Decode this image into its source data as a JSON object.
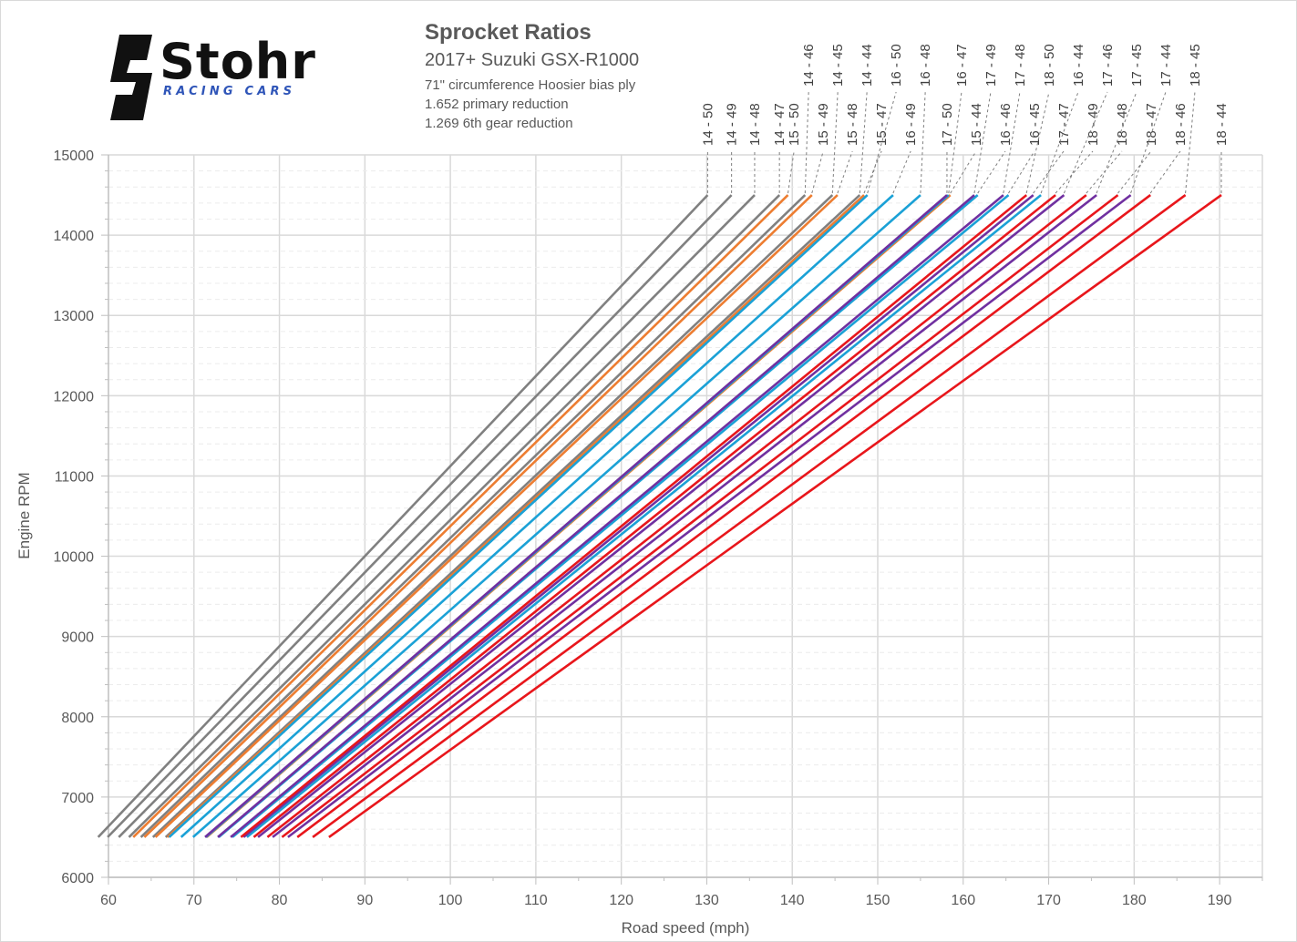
{
  "logo": {
    "brand": "Stohr",
    "tagline": "RACING CARS"
  },
  "header": {
    "title": "Sprocket Ratios",
    "subtitle": "2017+ Suzuki GSX-R1000",
    "notes": [
      "71\" circumference Hoosier bias ply",
      "1.652 primary reduction",
      "1.269 6th gear reduction"
    ]
  },
  "colors": {
    "14": "#808080",
    "15": "#ed7d31",
    "16": "#1ba1d6",
    "17": "#7030a0",
    "18": "#e8161b",
    "grid": "#d9d9d9",
    "axis": "#bfbfbf"
  },
  "chart_data": {
    "type": "line",
    "title": "Sprocket Ratios",
    "xlabel": "Road speed (mph)",
    "ylabel": "Engine RPM",
    "xlim": [
      60,
      195
    ],
    "ylim": [
      6000,
      15000
    ],
    "x_ticks": [
      60,
      70,
      80,
      90,
      100,
      110,
      120,
      130,
      140,
      150,
      160,
      170,
      180,
      190
    ],
    "y_ticks": [
      6000,
      7000,
      8000,
      9000,
      10000,
      11000,
      12000,
      13000,
      14000,
      15000
    ],
    "grid": true,
    "series": [
      {
        "name": "14 - 50",
        "x": [
          58.8,
          130.1
        ],
        "y": [
          6500,
          14500
        ]
      },
      {
        "name": "14 - 49",
        "x": [
          59.9,
          132.9
        ],
        "y": [
          6500,
          14500
        ]
      },
      {
        "name": "14 - 48",
        "x": [
          61.2,
          135.6
        ],
        "y": [
          6500,
          14500
        ]
      },
      {
        "name": "14 - 47",
        "x": [
          62.4,
          138.5
        ],
        "y": [
          6500,
          14500
        ]
      },
      {
        "name": "14 - 46",
        "x": [
          63.8,
          141.5
        ],
        "y": [
          6500,
          14500
        ]
      },
      {
        "name": "14 - 45",
        "x": [
          65.2,
          144.7
        ],
        "y": [
          6500,
          14500
        ]
      },
      {
        "name": "14 - 44",
        "x": [
          66.7,
          147.9
        ],
        "y": [
          6500,
          14500
        ]
      },
      {
        "name": "15 - 50",
        "x": [
          62.9,
          139.5
        ],
        "y": [
          6500,
          14500
        ]
      },
      {
        "name": "15 - 49",
        "x": [
          64.2,
          142.3
        ],
        "y": [
          6500,
          14500
        ]
      },
      {
        "name": "15 - 48",
        "x": [
          65.5,
          145.3
        ],
        "y": [
          6500,
          14500
        ]
      },
      {
        "name": "15 - 47",
        "x": [
          66.9,
          148.4
        ],
        "y": [
          6500,
          14500
        ]
      },
      {
        "name": "15 - 44",
        "x": [
          71.5,
          158.5
        ],
        "y": [
          6500,
          14500
        ]
      },
      {
        "name": "16 - 50",
        "x": [
          67.1,
          148.8
        ],
        "y": [
          6500,
          14500
        ]
      },
      {
        "name": "16 - 49",
        "x": [
          68.5,
          151.8
        ],
        "y": [
          6500,
          14500
        ]
      },
      {
        "name": "16 - 48",
        "x": [
          69.9,
          155.0
        ],
        "y": [
          6500,
          14500
        ]
      },
      {
        "name": "16 - 47",
        "x": [
          71.4,
          158.3
        ],
        "y": [
          6500,
          14500
        ]
      },
      {
        "name": "16 - 46",
        "x": [
          72.9,
          161.7
        ],
        "y": [
          6500,
          14500
        ]
      },
      {
        "name": "16 - 45",
        "x": [
          74.5,
          165.3
        ],
        "y": [
          6500,
          14500
        ]
      },
      {
        "name": "16 - 44",
        "x": [
          76.2,
          169.1
        ],
        "y": [
          6500,
          14500
        ]
      },
      {
        "name": "17 - 50",
        "x": [
          71.3,
          158.1
        ],
        "y": [
          6500,
          14500
        ]
      },
      {
        "name": "17 - 49",
        "x": [
          72.8,
          161.3
        ],
        "y": [
          6500,
          14500
        ]
      },
      {
        "name": "17 - 48",
        "x": [
          74.3,
          164.7
        ],
        "y": [
          6500,
          14500
        ]
      },
      {
        "name": "17 - 47",
        "x": [
          75.8,
          168.2
        ],
        "y": [
          6500,
          14500
        ]
      },
      {
        "name": "17 - 46",
        "x": [
          77.5,
          171.8
        ],
        "y": [
          6500,
          14500
        ]
      },
      {
        "name": "17 - 45",
        "x": [
          79.2,
          175.6
        ],
        "y": [
          6500,
          14500
        ]
      },
      {
        "name": "17 - 44",
        "x": [
          81.0,
          179.6
        ],
        "y": [
          6500,
          14500
        ]
      },
      {
        "name": "18 - 50",
        "x": [
          75.5,
          167.4
        ],
        "y": [
          6500,
          14500
        ]
      },
      {
        "name": "18 - 49",
        "x": [
          77.0,
          170.8
        ],
        "y": [
          6500,
          14500
        ]
      },
      {
        "name": "18 - 48",
        "x": [
          78.6,
          174.4
        ],
        "y": [
          6500,
          14500
        ]
      },
      {
        "name": "18 - 47",
        "x": [
          80.3,
          178.1
        ],
        "y": [
          6500,
          14500
        ]
      },
      {
        "name": "18 - 46",
        "x": [
          82.1,
          181.9
        ],
        "y": [
          6500,
          14500
        ]
      },
      {
        "name": "18 - 45",
        "x": [
          83.9,
          186.0
        ],
        "y": [
          6500,
          14500
        ]
      },
      {
        "name": "18 - 44",
        "x": [
          85.8,
          190.2
        ],
        "y": [
          6500,
          14500
        ]
      }
    ]
  }
}
